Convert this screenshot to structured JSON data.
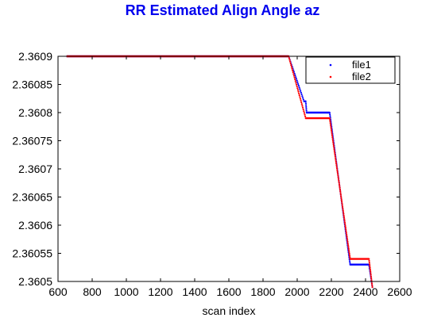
{
  "chart_data": {
    "type": "scatter",
    "title": "RR Estimated Align Angle az",
    "xlabel": "scan index",
    "ylabel": "",
    "xlim": [
      600,
      2600
    ],
    "ylim": [
      2.3605,
      2.3609
    ],
    "xticks": [
      600,
      800,
      1000,
      1200,
      1400,
      1600,
      1800,
      2000,
      2200,
      2400,
      2600
    ],
    "xtick_labels": [
      "600",
      "800",
      "1000",
      "1200",
      "1400",
      "1600",
      "1800",
      "2000",
      "2200",
      "2400",
      "2600"
    ],
    "yticks": [
      2.3605,
      2.36055,
      2.3606,
      2.36065,
      2.3607,
      2.36075,
      2.3608,
      2.36085,
      2.3609
    ],
    "ytick_labels": [
      "2.3605",
      "2.36055",
      "2.3606",
      "2.36065",
      "2.3607",
      "2.36075",
      "2.3608",
      "2.36085",
      "2.3609"
    ],
    "grid": false,
    "legend_position": "top-right",
    "colors": {
      "file1": "#0000ff",
      "file2": "#ff0000",
      "title": "#0000ee"
    },
    "series": [
      {
        "name": "file1",
        "color": "#0000ff",
        "segments": [
          {
            "kind": "flat",
            "x": [
              650,
              1950
            ],
            "y": 2.3609
          },
          {
            "kind": "slope",
            "x": [
              1950,
              2040
            ],
            "y": [
              2.3609,
              2.36082
            ]
          },
          {
            "kind": "flat",
            "x": [
              2040,
              2050
            ],
            "y": 2.36082
          },
          {
            "kind": "slope",
            "x": [
              2050,
              2055
            ],
            "y": [
              2.36082,
              2.3608
            ]
          },
          {
            "kind": "flat",
            "x": [
              2055,
              2190
            ],
            "y": 2.3608
          },
          {
            "kind": "slope",
            "x": [
              2190,
              2310
            ],
            "y": [
              2.3608,
              2.36053
            ]
          },
          {
            "kind": "flat",
            "x": [
              2310,
              2420
            ],
            "y": 2.36053
          },
          {
            "kind": "slope",
            "x": [
              2420,
              2440
            ],
            "y": [
              2.36053,
              2.36049
            ]
          }
        ]
      },
      {
        "name": "file2",
        "color": "#ff0000",
        "segments": [
          {
            "kind": "flat",
            "x": [
              650,
              1950
            ],
            "y": 2.3609
          },
          {
            "kind": "slope",
            "x": [
              1950,
              2050
            ],
            "y": [
              2.3609,
              2.36079
            ]
          },
          {
            "kind": "flat",
            "x": [
              2050,
              2190
            ],
            "y": 2.36079
          },
          {
            "kind": "slope",
            "x": [
              2190,
              2310
            ],
            "y": [
              2.36079,
              2.36054
            ]
          },
          {
            "kind": "flat",
            "x": [
              2310,
              2420
            ],
            "y": 2.36054
          },
          {
            "kind": "slope",
            "x": [
              2420,
              2440
            ],
            "y": [
              2.36054,
              2.36049
            ]
          }
        ]
      }
    ]
  }
}
